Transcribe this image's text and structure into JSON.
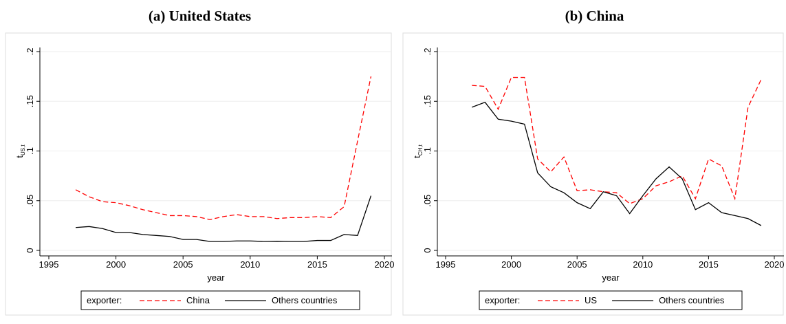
{
  "chart_data": [
    {
      "type": "line",
      "title": "(a) United States",
      "x_label": "year",
      "y_label": "t",
      "y_label_sub": "US,t",
      "x": [
        1997,
        1998,
        1999,
        2000,
        2001,
        2002,
        2003,
        2004,
        2005,
        2006,
        2007,
        2008,
        2009,
        2010,
        2011,
        2012,
        2013,
        2014,
        2015,
        2016,
        2017,
        2018,
        2019
      ],
      "series": [
        {
          "name": "China",
          "color": "#ff0000",
          "style": "dashed",
          "values": [
            0.061,
            0.054,
            0.049,
            0.048,
            0.045,
            0.041,
            0.038,
            0.035,
            0.035,
            0.034,
            0.031,
            0.034,
            0.036,
            0.034,
            0.034,
            0.032,
            0.033,
            0.033,
            0.034,
            0.033,
            0.044,
            0.11,
            0.175
          ]
        },
        {
          "name": "Others countries",
          "color": "#000000",
          "style": "solid",
          "values": [
            0.023,
            0.024,
            0.022,
            0.018,
            0.018,
            0.016,
            0.015,
            0.014,
            0.011,
            0.011,
            0.009,
            0.009,
            0.0095,
            0.0095,
            0.009,
            0.0092,
            0.009,
            0.009,
            0.01,
            0.01,
            0.016,
            0.015,
            0.055
          ]
        }
      ],
      "legend_title": "exporter:",
      "xlim": [
        1995,
        2020
      ],
      "xticks": [
        1995,
        2000,
        2005,
        2010,
        2015,
        2020
      ],
      "ylim": [
        0,
        0.2
      ],
      "yticks": [
        0,
        {
          "value": 0.05,
          "label": ".05"
        },
        {
          "value": 0.1,
          "label": ".1"
        },
        {
          "value": 0.15,
          "label": ".15"
        },
        {
          "value": 0.2,
          "label": ".2"
        }
      ],
      "grid": true
    },
    {
      "type": "line",
      "title": "(b) China",
      "x_label": "year",
      "y_label": "t",
      "y_label_sub": "CH,t",
      "x": [
        1997,
        1998,
        1999,
        2000,
        2001,
        2002,
        2003,
        2004,
        2005,
        2006,
        2007,
        2008,
        2009,
        2010,
        2011,
        2012,
        2013,
        2014,
        2015,
        2016,
        2017,
        2018,
        2019
      ],
      "series": [
        {
          "name": "US",
          "color": "#ff0000",
          "style": "dashed",
          "values": [
            0.166,
            0.165,
            0.142,
            0.174,
            0.174,
            0.092,
            0.079,
            0.094,
            0.06,
            0.061,
            0.059,
            0.058,
            0.047,
            0.052,
            0.065,
            0.069,
            0.075,
            0.052,
            0.092,
            0.085,
            0.052,
            0.144,
            0.172
          ]
        },
        {
          "name": "Others countries",
          "color": "#000000",
          "style": "solid",
          "values": [
            0.144,
            0.149,
            0.132,
            0.13,
            0.127,
            0.078,
            0.064,
            0.058,
            0.048,
            0.042,
            0.059,
            0.055,
            0.037,
            0.055,
            0.072,
            0.084,
            0.072,
            0.041,
            0.048,
            0.038,
            0.035,
            0.032,
            0.025
          ]
        }
      ],
      "legend_title": "exporter:",
      "xlim": [
        1995,
        2020
      ],
      "xticks": [
        1995,
        2000,
        2005,
        2010,
        2015,
        2020
      ],
      "ylim": [
        0,
        0.2
      ],
      "yticks": [
        0,
        {
          "value": 0.05,
          "label": ".05"
        },
        {
          "value": 0.1,
          "label": ".1"
        },
        {
          "value": 0.15,
          "label": ".15"
        },
        {
          "value": 0.2,
          "label": ".2"
        }
      ],
      "grid": true
    }
  ]
}
